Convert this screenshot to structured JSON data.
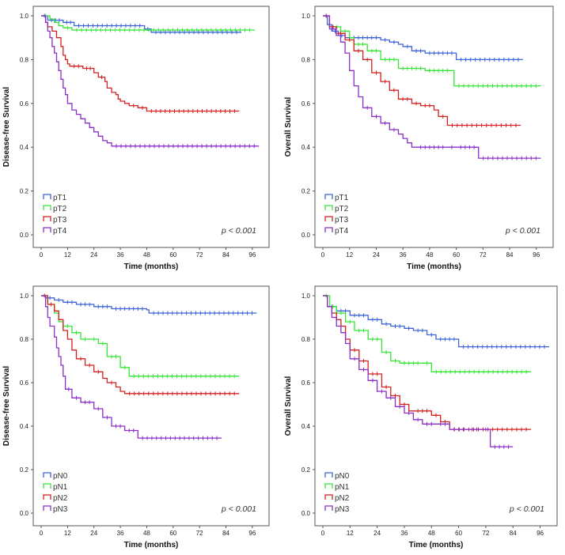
{
  "figure": {
    "panels": [
      {
        "id": "dfs-pT",
        "ylabel": "Disease-free Survival",
        "xlabel": "Time (months)",
        "pvalue": "p < 0.001",
        "xticks": [
          "0",
          "12",
          "24",
          "36",
          "48",
          "60",
          "72",
          "84",
          "96"
        ],
        "yticks": [
          "0.0",
          "0.2",
          "0.4",
          "0.6",
          "0.8",
          "1.0"
        ],
        "legend": [
          "pT1",
          "pT2",
          "pT3",
          "pT4"
        ]
      },
      {
        "id": "os-pT",
        "ylabel": "Overall Survival",
        "xlabel": "Time (months)",
        "pvalue": "p < 0.001",
        "xticks": [
          "0",
          "12",
          "24",
          "36",
          "48",
          "60",
          "72",
          "84",
          "96"
        ],
        "yticks": [
          "0.0",
          "0.2",
          "0.4",
          "0.6",
          "0.8",
          "1.0"
        ],
        "legend": [
          "pT1",
          "pT2",
          "pT3",
          "pT4"
        ]
      },
      {
        "id": "dfs-pN",
        "ylabel": "Disease-free Survival",
        "xlabel": "Time (months)",
        "pvalue": "p < 0.001",
        "xticks": [
          "0",
          "12",
          "24",
          "36",
          "48",
          "60",
          "72",
          "84",
          "96"
        ],
        "yticks": [
          "0.0",
          "0.2",
          "0.4",
          "0.6",
          "0.8",
          "1.0"
        ],
        "legend": [
          "pN0",
          "pN1",
          "pN2",
          "pN3"
        ]
      },
      {
        "id": "os-pN",
        "ylabel": "Overall Survival",
        "xlabel": "Time (months)",
        "pvalue": "p < 0.001",
        "xticks": [
          "0",
          "12",
          "24",
          "36",
          "48",
          "60",
          "72",
          "84",
          "96"
        ],
        "yticks": [
          "0.0",
          "0.2",
          "0.4",
          "0.6",
          "0.8",
          "1.0"
        ],
        "legend": [
          "pN0",
          "pN1",
          "pN2",
          "pN3"
        ]
      }
    ]
  },
  "colors": {
    "s1": "#3c64d8",
    "s2": "#35e535",
    "s3": "#d42020",
    "s4": "#8a2fc8",
    "frame": "#555555"
  },
  "chart_data": [
    {
      "type": "line",
      "title": "",
      "xlabel": "Time (months)",
      "ylabel": "Disease-free Survival",
      "xlim": [
        0,
        100
      ],
      "ylim": [
        0,
        1
      ],
      "series": [
        {
          "name": "pT1",
          "x": [
            0,
            3,
            10,
            15,
            47,
            50,
            91
          ],
          "y": [
            1.0,
            0.98,
            0.97,
            0.955,
            0.94,
            0.925,
            0.925
          ]
        },
        {
          "name": "pT2",
          "x": [
            0,
            4,
            6,
            8,
            10,
            14,
            97
          ],
          "y": [
            1.0,
            0.985,
            0.97,
            0.955,
            0.945,
            0.935,
            0.935
          ]
        },
        {
          "name": "pT3",
          "x": [
            0,
            2,
            3,
            5,
            7,
            9,
            10,
            11,
            12,
            13,
            19,
            24,
            26,
            29,
            30,
            32,
            34,
            35,
            36,
            38,
            40,
            44,
            48,
            90
          ],
          "y": [
            1.0,
            0.97,
            0.95,
            0.93,
            0.9,
            0.86,
            0.82,
            0.8,
            0.78,
            0.77,
            0.76,
            0.74,
            0.72,
            0.7,
            0.67,
            0.65,
            0.64,
            0.62,
            0.61,
            0.6,
            0.59,
            0.58,
            0.565,
            0.565
          ]
        },
        {
          "name": "pT4",
          "x": [
            0,
            2,
            3,
            4,
            5,
            6,
            7,
            8,
            9,
            10,
            11,
            12,
            14,
            16,
            18,
            20,
            22,
            24,
            26,
            28,
            30,
            32,
            99
          ],
          "y": [
            1.0,
            0.97,
            0.93,
            0.9,
            0.86,
            0.83,
            0.79,
            0.75,
            0.71,
            0.67,
            0.64,
            0.6,
            0.57,
            0.55,
            0.53,
            0.51,
            0.49,
            0.47,
            0.45,
            0.43,
            0.42,
            0.405,
            0.405
          ]
        }
      ]
    },
    {
      "type": "line",
      "title": "",
      "xlabel": "Time (months)",
      "ylabel": "Overall Survival",
      "xlim": [
        0,
        100
      ],
      "ylim": [
        0,
        1
      ],
      "series": [
        {
          "name": "pT1",
          "x": [
            0,
            2,
            4,
            7,
            10,
            26,
            30,
            34,
            36,
            40,
            46,
            60,
            90
          ],
          "y": [
            1.0,
            0.96,
            0.93,
            0.91,
            0.9,
            0.89,
            0.88,
            0.87,
            0.86,
            0.84,
            0.83,
            0.8,
            0.8
          ]
        },
        {
          "name": "pT2",
          "x": [
            0,
            3,
            8,
            12,
            14,
            20,
            26,
            34,
            46,
            58,
            59,
            98
          ],
          "y": [
            1.0,
            0.95,
            0.93,
            0.9,
            0.87,
            0.84,
            0.8,
            0.76,
            0.75,
            0.75,
            0.68,
            0.68
          ]
        },
        {
          "name": "pT3",
          "x": [
            0,
            3,
            6,
            10,
            14,
            18,
            22,
            26,
            30,
            34,
            40,
            44,
            50,
            52,
            56,
            89
          ],
          "y": [
            1.0,
            0.95,
            0.92,
            0.89,
            0.84,
            0.8,
            0.74,
            0.7,
            0.66,
            0.62,
            0.6,
            0.59,
            0.57,
            0.54,
            0.5,
            0.5
          ]
        },
        {
          "name": "pT4",
          "x": [
            0,
            3,
            6,
            8,
            10,
            12,
            14,
            16,
            18,
            22,
            26,
            30,
            34,
            36,
            38,
            40,
            42,
            56,
            60,
            70,
            98
          ],
          "y": [
            1.0,
            0.94,
            0.91,
            0.88,
            0.83,
            0.75,
            0.68,
            0.63,
            0.58,
            0.54,
            0.51,
            0.48,
            0.46,
            0.44,
            0.42,
            0.4,
            0.4,
            0.4,
            0.4,
            0.35,
            0.35
          ]
        }
      ]
    },
    {
      "type": "line",
      "title": "",
      "xlabel": "Time (months)",
      "ylabel": "Disease-free Survival",
      "xlim": [
        0,
        100
      ],
      "ylim": [
        0,
        1
      ],
      "series": [
        {
          "name": "pN0",
          "x": [
            0,
            2,
            6,
            10,
            16,
            24,
            32,
            48,
            49,
            98
          ],
          "y": [
            1.0,
            0.99,
            0.98,
            0.97,
            0.96,
            0.95,
            0.94,
            0.935,
            0.92,
            0.92
          ]
        },
        {
          "name": "pN1",
          "x": [
            0,
            3,
            6,
            8,
            10,
            14,
            18,
            22,
            26,
            30,
            36,
            40,
            90
          ],
          "y": [
            1.0,
            0.96,
            0.92,
            0.88,
            0.86,
            0.83,
            0.8,
            0.8,
            0.78,
            0.72,
            0.67,
            0.63,
            0.63
          ]
        },
        {
          "name": "pN2",
          "x": [
            0,
            3,
            6,
            8,
            10,
            12,
            14,
            16,
            20,
            24,
            28,
            30,
            34,
            36,
            38,
            90
          ],
          "y": [
            1.0,
            0.96,
            0.93,
            0.89,
            0.84,
            0.8,
            0.75,
            0.71,
            0.68,
            0.65,
            0.62,
            0.6,
            0.58,
            0.56,
            0.55,
            0.55
          ]
        },
        {
          "name": "pN3",
          "x": [
            0,
            2,
            3,
            4,
            6,
            7,
            8,
            9,
            10,
            11,
            14,
            18,
            24,
            28,
            32,
            38,
            44,
            82
          ],
          "y": [
            1.0,
            0.95,
            0.9,
            0.86,
            0.81,
            0.76,
            0.72,
            0.68,
            0.63,
            0.57,
            0.53,
            0.51,
            0.48,
            0.44,
            0.4,
            0.38,
            0.345,
            0.345
          ]
        }
      ]
    },
    {
      "type": "line",
      "title": "",
      "xlabel": "Time (months)",
      "ylabel": "Overall Survival",
      "xlim": [
        0,
        100
      ],
      "ylim": [
        0,
        1
      ],
      "series": [
        {
          "name": "pN0",
          "x": [
            0,
            2,
            6,
            12,
            20,
            26,
            30,
            36,
            40,
            46,
            50,
            60,
            100
          ],
          "y": [
            1.0,
            0.95,
            0.93,
            0.91,
            0.89,
            0.87,
            0.86,
            0.85,
            0.84,
            0.82,
            0.8,
            0.765,
            0.765
          ]
        },
        {
          "name": "pN1",
          "x": [
            0,
            3,
            6,
            10,
            14,
            20,
            26,
            30,
            34,
            44,
            48,
            92
          ],
          "y": [
            1.0,
            0.95,
            0.92,
            0.88,
            0.84,
            0.8,
            0.74,
            0.7,
            0.69,
            0.69,
            0.65,
            0.65
          ]
        },
        {
          "name": "pN2",
          "x": [
            0,
            2,
            4,
            6,
            8,
            10,
            12,
            16,
            20,
            26,
            30,
            34,
            38,
            40,
            48,
            52,
            56,
            92
          ],
          "y": [
            1.0,
            0.95,
            0.92,
            0.89,
            0.86,
            0.8,
            0.75,
            0.7,
            0.64,
            0.58,
            0.54,
            0.5,
            0.47,
            0.47,
            0.45,
            0.42,
            0.385,
            0.385
          ]
        },
        {
          "name": "pN3",
          "x": [
            0,
            2,
            4,
            6,
            8,
            10,
            12,
            16,
            20,
            24,
            28,
            32,
            36,
            40,
            44,
            50,
            56,
            64,
            70,
            74,
            84
          ],
          "y": [
            1.0,
            0.95,
            0.9,
            0.86,
            0.83,
            0.78,
            0.71,
            0.66,
            0.61,
            0.56,
            0.53,
            0.49,
            0.46,
            0.43,
            0.41,
            0.41,
            0.385,
            0.385,
            0.385,
            0.305,
            0.305
          ]
        }
      ]
    }
  ]
}
